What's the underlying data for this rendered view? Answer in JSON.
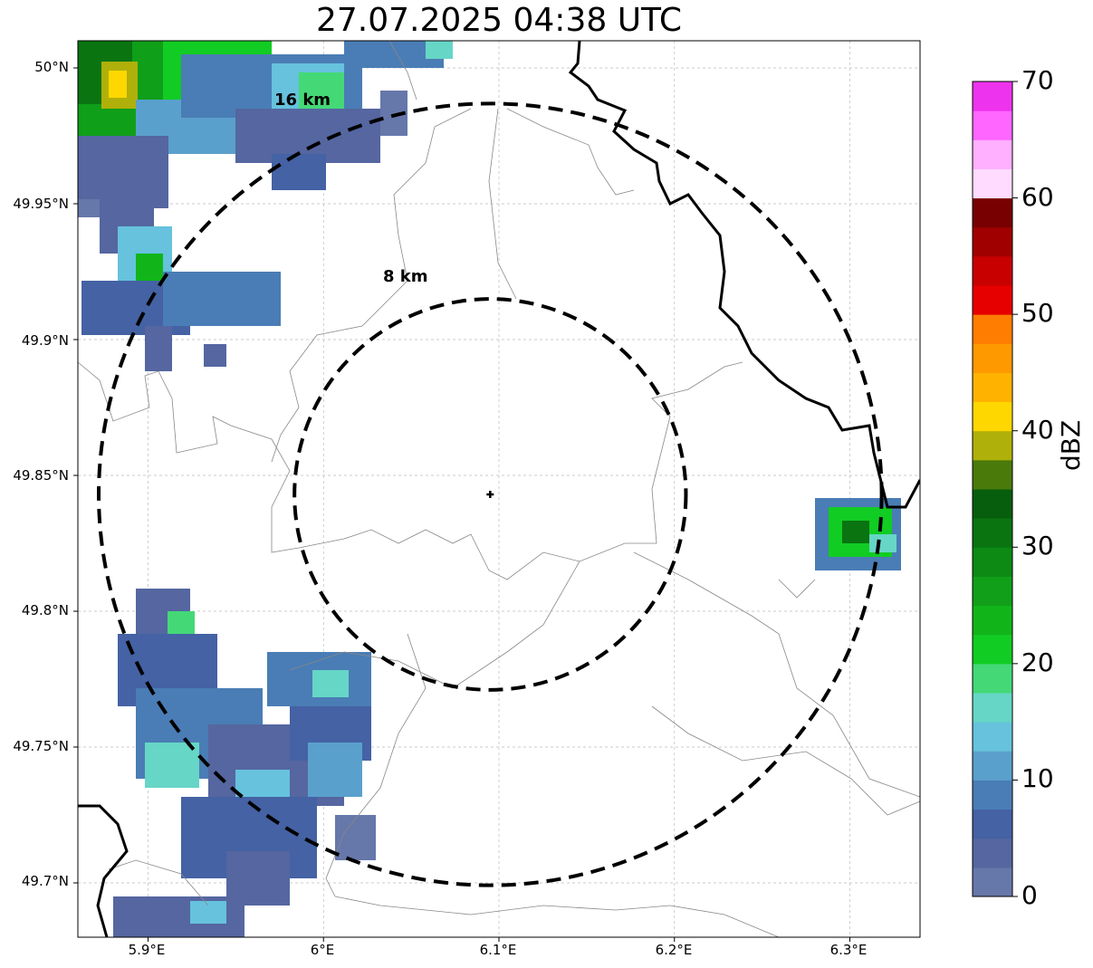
{
  "title": "27.07.2025 04:38 UTC",
  "map": {
    "lon_range": [
      5.86,
      6.34
    ],
    "lat_range": [
      49.68,
      50.01
    ],
    "radar_site": {
      "lon": 6.095,
      "lat": 49.843
    },
    "rings_km": [
      8,
      16
    ],
    "ring_labels": [
      "8 km",
      "16 km"
    ],
    "gridlines": true,
    "x_ticks": [
      {
        "value": 5.9,
        "label": "5.9°E"
      },
      {
        "value": 6.0,
        "label": "6°E"
      },
      {
        "value": 6.1,
        "label": "6.1°E"
      },
      {
        "value": 6.2,
        "label": "6.2°E"
      },
      {
        "value": 6.3,
        "label": "6.3°E"
      }
    ],
    "y_ticks": [
      {
        "value": 50.0,
        "label": "50°N"
      },
      {
        "value": 49.95,
        "label": "49.95°N"
      },
      {
        "value": 49.9,
        "label": "49.9°N"
      },
      {
        "value": 49.85,
        "label": "49.85°N"
      },
      {
        "value": 49.8,
        "label": "49.8°N"
      },
      {
        "value": 49.75,
        "label": "49.75°N"
      },
      {
        "value": 49.7,
        "label": "49.7°N"
      }
    ]
  },
  "colorbar": {
    "label": "dBZ",
    "range": [
      0,
      70
    ],
    "ticks": [
      "0",
      "10",
      "20",
      "30",
      "40",
      "50",
      "60",
      "70"
    ],
    "colors": [
      "#6677aa",
      "#5566a0",
      "#4462a4",
      "#4a7db5",
      "#5aa0cc",
      "#66c2dd",
      "#66d6c6",
      "#44d877",
      "#11cc22",
      "#11b51a",
      "#119f19",
      "#0c8a14",
      "#0a7411",
      "#075e0d",
      "#4a7a0a",
      "#b0b00a",
      "#ffd700",
      "#ffb300",
      "#ff9900",
      "#ff7d00",
      "#e60000",
      "#c80000",
      "#a00000",
      "#780000",
      "#ffdcff",
      "#ffb0ff",
      "#ff66ff",
      "#ee33ee"
    ]
  }
}
